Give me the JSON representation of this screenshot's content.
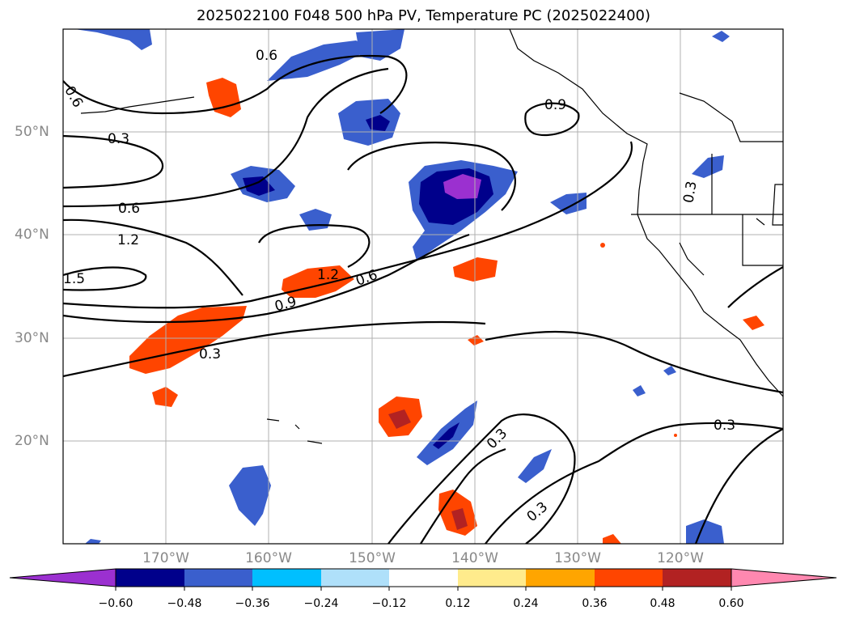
{
  "title": "2025022100 F048 500 hPa PV, Temperature PC (2025022400)",
  "lat_labels": [
    "50°N",
    "40°N",
    "30°N",
    "20°N"
  ],
  "lon_labels": [
    "170°W",
    "160°W",
    "150°W",
    "140°W",
    "130°W",
    "120°W"
  ],
  "contour_labels": [
    "0.6",
    "0.6",
    "0.9",
    "0.3",
    "0.6",
    "1.2",
    "1.5",
    "1.2",
    "0.6",
    "0.9",
    "0.3",
    "0.3",
    "0.3",
    "0.3",
    "0.3"
  ],
  "colorbar": {
    "ticks": [
      "−0.60",
      "−0.48",
      "−0.36",
      "−0.24",
      "−0.12",
      "0.12",
      "0.24",
      "0.36",
      "0.48",
      "0.60"
    ],
    "colors": [
      "#9b30d0",
      "#00008b",
      "#3a5fcd",
      "#00bfff",
      "#afe0fa",
      "#ffffff",
      "#ffeb8c",
      "#ffa500",
      "#ff4500",
      "#b22222",
      "#ff88b0"
    ]
  }
}
